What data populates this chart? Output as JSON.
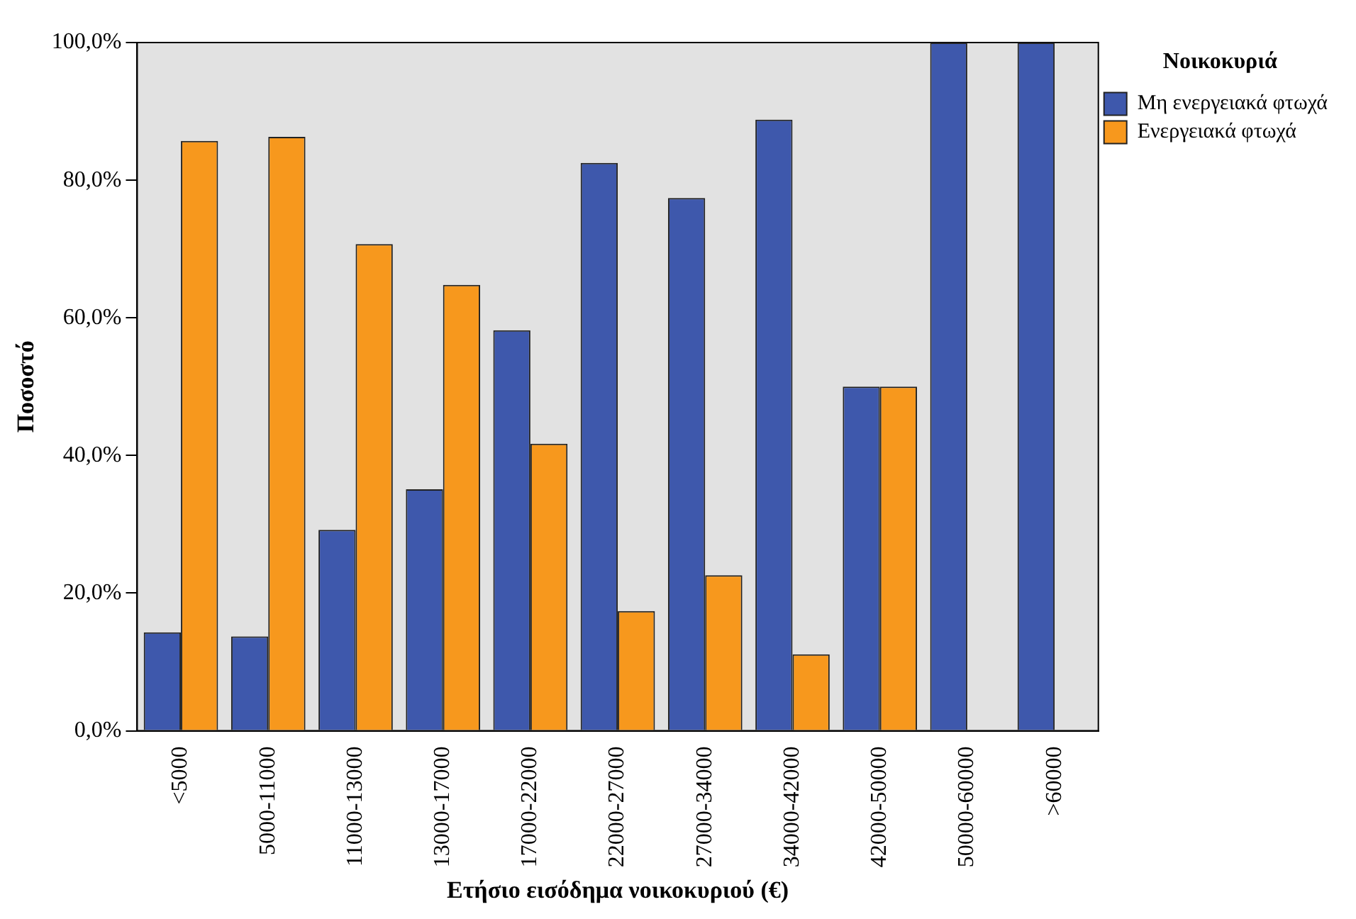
{
  "chart_data": {
    "type": "bar",
    "xlabel": "Ετήσιο εισόδημα νοικοκυριού (€)",
    "ylabel": "Ποσοστό",
    "legend_title": "Νοικοκυριά",
    "legend": "top right",
    "grid": false,
    "categories": [
      "<5000",
      "5000-11000",
      "11000-13000",
      "13000-17000",
      "17000-22000",
      "22000-27000",
      "27000-34000",
      "34000-42000",
      "42000-50000",
      "50000-60000",
      ">60000"
    ],
    "ylim": [
      0,
      100
    ],
    "yticks": [
      {
        "value": 0,
        "label": "0,0%"
      },
      {
        "value": 20,
        "label": "20,0%"
      },
      {
        "value": 40,
        "label": "40,0%"
      },
      {
        "value": 60,
        "label": "60,0%"
      },
      {
        "value": 80,
        "label": "80,0%"
      },
      {
        "value": 100,
        "label": "100,0%"
      }
    ],
    "series": [
      {
        "name": "Μη ενεργειακά φτωχά",
        "color": "#3e58ac",
        "values": [
          14.3,
          13.7,
          29.2,
          35.1,
          58.2,
          82.5,
          77.4,
          88.8,
          50,
          100,
          100
        ]
      },
      {
        "name": "Ενεργειακά φτωχά",
        "color": "#f7981d",
        "values": [
          85.7,
          86.3,
          70.7,
          64.8,
          41.7,
          17.4,
          22.6,
          11.1,
          50,
          null,
          null
        ]
      }
    ]
  }
}
